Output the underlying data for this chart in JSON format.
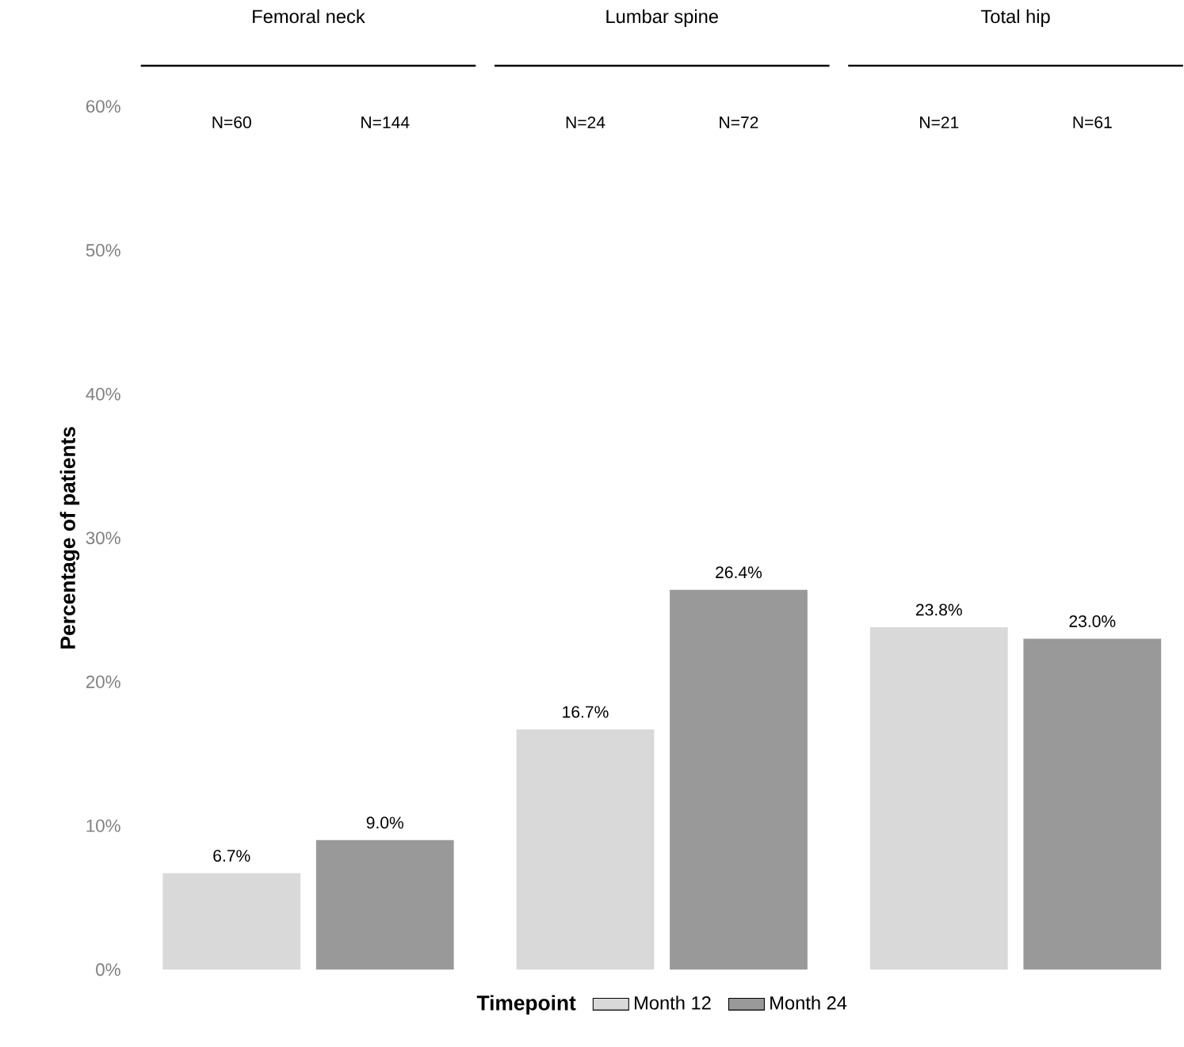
{
  "chart_data": [
    {
      "type": "bar",
      "title": "Femoral neck",
      "ylabel": "Percentage of patients",
      "categories": [
        "N=60",
        "N=144"
      ],
      "ylim": [
        0,
        60
      ],
      "yticks": [
        {
          "value": 0,
          "label": "0%"
        },
        {
          "value": 10,
          "label": "10%"
        },
        {
          "value": 20,
          "label": "20%"
        },
        {
          "value": 30,
          "label": "30%"
        },
        {
          "value": 40,
          "label": "40%"
        },
        {
          "value": 50,
          "label": "50%"
        },
        {
          "value": 60,
          "label": "60%"
        }
      ],
      "legend": false,
      "series": [
        {
          "color": "#d9d9d9",
          "values": [
            6.7,
            null
          ],
          "value_labels": [
            "6.7%",
            null
          ]
        },
        {
          "color": "#999999",
          "values": [
            null,
            9.0
          ],
          "value_labels": [
            null,
            "9.0%"
          ]
        }
      ]
    },
    {
      "type": "bar",
      "title": "Lumbar spine",
      "categories": [
        "N=24",
        "N=72"
      ],
      "ylim": [
        0,
        60
      ],
      "tick_labels": "x",
      "legend": "bottom",
      "legend_title": "Timepoint",
      "series": [
        {
          "name": "Month 12",
          "color": "#d9d9d9",
          "values": [
            16.7,
            null
          ],
          "value_labels": [
            "16.7%",
            null
          ]
        },
        {
          "name": "Month 24",
          "color": "#999999",
          "values": [
            null,
            26.4
          ],
          "value_labels": [
            null,
            "26.4%"
          ]
        }
      ]
    },
    {
      "type": "bar",
      "title": "Total hip",
      "categories": [
        "N=21",
        "N=61"
      ],
      "ylim": [
        0,
        60
      ],
      "tick_labels": "x",
      "legend": false,
      "series": [
        {
          "color": "#d9d9d9",
          "values": [
            23.8,
            null
          ],
          "value_labels": [
            "23.8%",
            null
          ]
        },
        {
          "color": "#999999",
          "values": [
            null,
            23.0
          ],
          "value_labels": [
            null,
            "23.0%"
          ]
        }
      ]
    }
  ]
}
